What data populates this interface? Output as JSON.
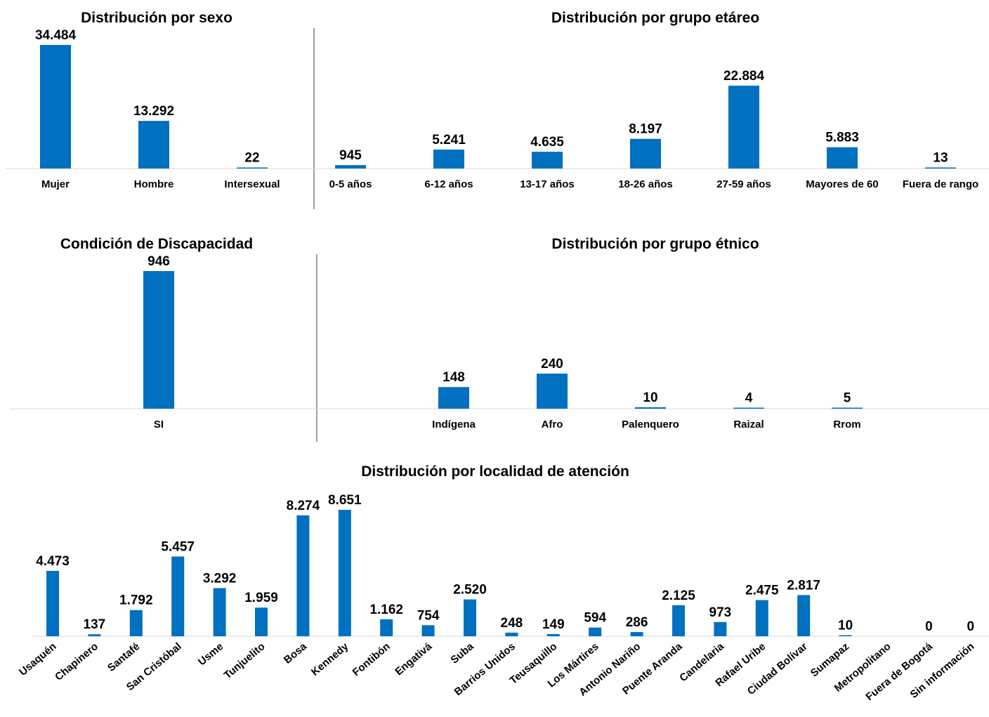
{
  "colors": {
    "bar": "#0070C0",
    "axis": "#d9d9d9",
    "divider": "#404040"
  },
  "chart_data": [
    {
      "type": "bar",
      "title": "Distribución por sexo",
      "categories": [
        "Mujer",
        "Hombre",
        "Intersexual"
      ],
      "values": [
        34484,
        13292,
        22
      ],
      "labels": [
        "34.484",
        "13.292",
        "22"
      ]
    },
    {
      "type": "bar",
      "title": "Distribución por grupo etáreo",
      "categories": [
        "0-5 años",
        "6-12 años",
        "13-17 años",
        "18-26 años",
        "27-59 años",
        "Mayores de 60",
        "Fuera de rango"
      ],
      "values": [
        945,
        5241,
        4635,
        8197,
        22884,
        5883,
        13
      ],
      "labels": [
        "945",
        "5.241",
        "4.635",
        "8.197",
        "22.884",
        "5.883",
        "13"
      ]
    },
    {
      "type": "bar",
      "title": "Condición de Discapacidad",
      "categories": [
        "SI"
      ],
      "values": [
        946
      ],
      "labels": [
        "946"
      ]
    },
    {
      "type": "bar",
      "title": "Distribución por grupo étnico",
      "categories": [
        "Indígena",
        "Afro",
        "Palenquero",
        "Raizal",
        "Rrom"
      ],
      "values": [
        148,
        240,
        10,
        4,
        5
      ],
      "labels": [
        "148",
        "240",
        "10",
        "4",
        "5"
      ]
    },
    {
      "type": "bar",
      "title": "Distribución por localidad de atención",
      "categories": [
        "Usaquén",
        "Chapinero",
        "Santafé",
        "San Cristóbal",
        "Usme",
        "Tunjuelito",
        "Bosa",
        "Kennedy",
        "Fontibón",
        "Engativá",
        "Suba",
        "Barrios Unidos",
        "Teusaquillo",
        "Los Mártires",
        "Antonio Nariño",
        "Puente Aranda",
        "Candelaria",
        "Rafael Uribe",
        "Ciudad Bolívar",
        "Sumapaz",
        "Metropolitano",
        "Fuera de Bogotá",
        "Sin información"
      ],
      "values": [
        4473,
        137,
        1792,
        5457,
        3292,
        1959,
        8274,
        8651,
        1162,
        754,
        2520,
        248,
        149,
        594,
        286,
        2125,
        973,
        2475,
        2817,
        10,
        null,
        0,
        0
      ],
      "labels": [
        "4.473",
        "137",
        "1.792",
        "5.457",
        "3.292",
        "1.959",
        "8.274",
        "8.651",
        "1.162",
        "754",
        "2.520",
        "248",
        "149",
        "594",
        "286",
        "2.125",
        "973",
        "2.475",
        "2.817",
        "10",
        "",
        "0",
        "0"
      ]
    }
  ]
}
